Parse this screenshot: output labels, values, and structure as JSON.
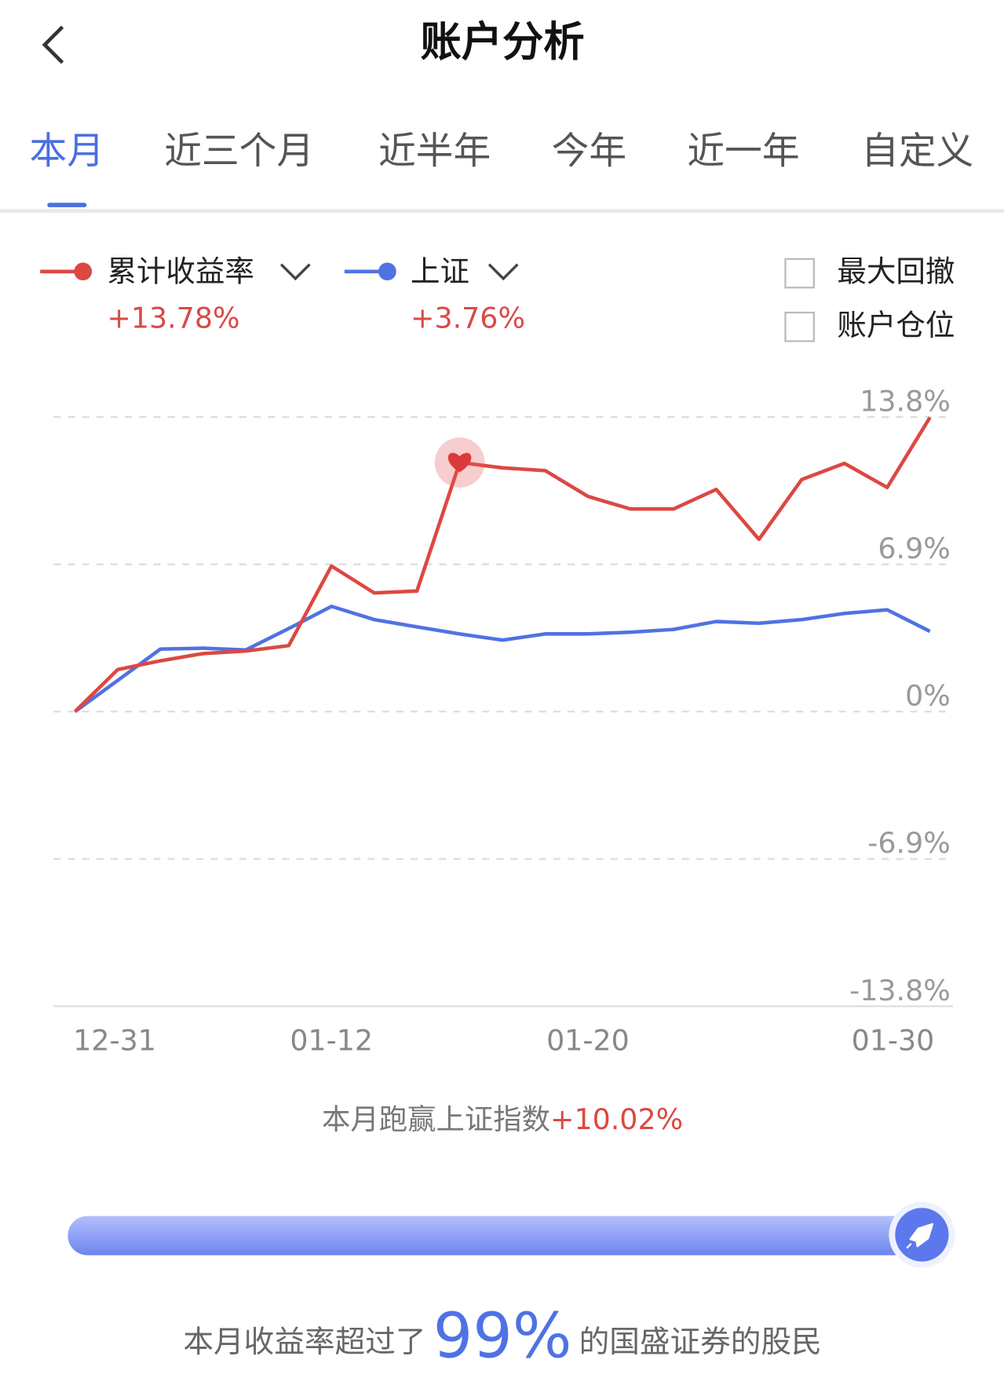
{
  "header": {
    "title": "账户分析"
  },
  "tabs": {
    "items": [
      "本月",
      "近三个月",
      "近半年",
      "今年",
      "近一年",
      "自定义"
    ],
    "active": 0
  },
  "options": [
    "最大回撤",
    "账户仓位"
  ],
  "chart_data": {
    "type": "line",
    "categories": [
      "12-31",
      null,
      null,
      null,
      null,
      null,
      "01-12",
      null,
      null,
      null,
      null,
      null,
      "01-20",
      null,
      null,
      null,
      null,
      null,
      null,
      null,
      "01-30"
    ],
    "series": [
      {
        "name": "累计收益率",
        "summary": "+13.78%",
        "color": "#dc4842",
        "values": [
          0,
          1.97,
          2.38,
          2.72,
          2.84,
          3.09,
          6.82,
          5.56,
          5.65,
          11.67,
          11.42,
          11.29,
          10.08,
          9.49,
          9.49,
          10.41,
          8.07,
          10.87,
          11.63,
          10.5,
          13.78
        ]
      },
      {
        "name": "上证",
        "summary": "+3.76%",
        "color": "#4f72e3",
        "values": [
          0,
          1.46,
          2.93,
          2.97,
          2.89,
          3.89,
          4.93,
          4.31,
          3.97,
          3.64,
          3.35,
          3.64,
          3.64,
          3.72,
          3.85,
          4.22,
          4.14,
          4.31,
          4.6,
          4.77,
          3.76
        ]
      }
    ],
    "ylim": [
      -13.8,
      13.8
    ],
    "yticks": [
      {
        "value": 13.8,
        "label": "13.8%"
      },
      {
        "value": 6.9,
        "label": "6.9%"
      },
      {
        "value": 0,
        "label": "0%"
      },
      {
        "value": -6.9,
        "label": "-6.9%"
      },
      {
        "value": -13.8,
        "label": "-13.8%"
      }
    ],
    "grid": true
  },
  "summary": {
    "text": "本月跑赢上证指数",
    "value": "+10.02%"
  },
  "footer": {
    "before": "本月收益率超过了",
    "rank": {
      "value": 99,
      "label": "99%"
    },
    "after": "的国盛证券的股民"
  }
}
